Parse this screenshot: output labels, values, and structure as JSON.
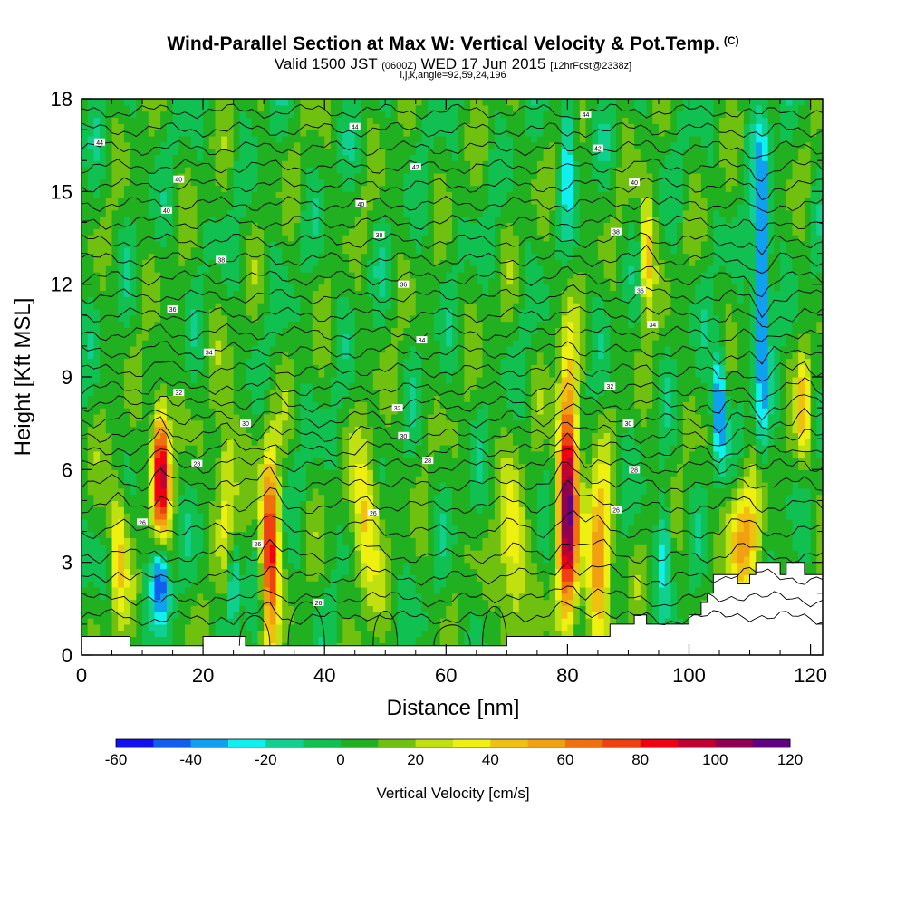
{
  "header": {
    "title": "Wind-Parallel Section at Max W: Vertical Velocity & Pot.Temp.",
    "copyright": "(C)",
    "valid_prefix": "Valid 1500 JST",
    "valid_utc": "(0600Z)",
    "valid_date": "WED 17 Jun 2015",
    "forecast": "[12hrFcst@2338z]",
    "indices": "i,j,k,angle=92,59,24,196"
  },
  "chart_data": {
    "type": "heatmap",
    "xlabel": "Distance [nm]",
    "ylabel": "Height [Kft MSL]",
    "xlim": [
      0,
      122
    ],
    "ylim": [
      0,
      18
    ],
    "xticks": [
      0,
      20,
      40,
      60,
      80,
      100,
      120
    ],
    "yticks": [
      0,
      3,
      6,
      9,
      12,
      15,
      18
    ],
    "colorbar": {
      "label": "Vertical Velocity [cm/s]",
      "ticks": [
        -60,
        -40,
        -20,
        0,
        20,
        40,
        60,
        80,
        100,
        120
      ],
      "range": [
        -60,
        120
      ],
      "step": 10,
      "colors": [
        "#1010f0",
        "#1060f0",
        "#10a0f0",
        "#10f0f0",
        "#10d090",
        "#10c050",
        "#20b020",
        "#70c010",
        "#c0e010",
        "#f0f010",
        "#f0c010",
        "#f0a010",
        "#f07010",
        "#f04010",
        "#f00010",
        "#c00030",
        "#900050",
        "#600080"
      ]
    },
    "plumes": [
      {
        "x": 13,
        "z": 6.0,
        "w": 95,
        "sx": 1.0,
        "sz": 1.6
      },
      {
        "x": 6,
        "z": 3.5,
        "w": 40,
        "sx": 1.0,
        "sz": 1.8
      },
      {
        "x": 31,
        "z": 3.5,
        "w": 85,
        "sx": 1.0,
        "sz": 2.2
      },
      {
        "x": 24,
        "z": 5.5,
        "w": 40,
        "sx": 1.2,
        "sz": 2.0
      },
      {
        "x": 47,
        "z": 4.2,
        "w": 45,
        "sx": 1.4,
        "sz": 1.8
      },
      {
        "x": 80,
        "z": 5.2,
        "w": 105,
        "sx": 1.2,
        "sz": 2.8
      },
      {
        "x": 85,
        "z": 3.2,
        "w": 60,
        "sx": 1.5,
        "sz": 1.8
      },
      {
        "x": 71,
        "z": 3.0,
        "w": 40,
        "sx": 1.4,
        "sz": 2.0
      },
      {
        "x": 93,
        "z": 13.0,
        "w": 50,
        "sx": 0.8,
        "sz": 1.3
      },
      {
        "x": 109,
        "z": 3.8,
        "w": 45,
        "sx": 2.0,
        "sz": 1.4
      },
      {
        "x": 119,
        "z": 8.0,
        "w": 45,
        "sx": 0.7,
        "sz": 1.4
      },
      {
        "x": 13,
        "z": 2.5,
        "w": -55,
        "sx": 1.0,
        "sz": 1.0
      },
      {
        "x": 25,
        "z": 2.5,
        "w": -40,
        "sx": 0.8,
        "sz": 1.2
      },
      {
        "x": 105,
        "z": 8.0,
        "w": -55,
        "sx": 0.8,
        "sz": 1.4
      },
      {
        "x": 112,
        "z": 12.0,
        "w": -55,
        "sx": 0.8,
        "sz": 1.6
      },
      {
        "x": 112,
        "z": 8.0,
        "w": -30,
        "sx": 0.8,
        "sz": 1.6
      },
      {
        "x": 96,
        "z": 3.5,
        "w": -30,
        "sx": 0.8,
        "sz": 1.2
      },
      {
        "x": 80,
        "z": 16.5,
        "w": -30,
        "sx": 0.8,
        "sz": 1.5
      },
      {
        "x": 112,
        "z": 15.5,
        "w": -30,
        "sx": 1.0,
        "sz": 2.0
      }
    ],
    "terrain": [
      [
        0,
        0.6
      ],
      [
        8,
        0.6
      ],
      [
        8,
        0.3
      ],
      [
        20,
        0.3
      ],
      [
        20,
        0.6
      ],
      [
        27,
        0.6
      ],
      [
        27,
        0.3
      ],
      [
        70,
        0.3
      ],
      [
        70,
        0.6
      ],
      [
        87,
        0.6
      ],
      [
        87,
        1.0
      ],
      [
        91,
        1.0
      ],
      [
        91,
        1.3
      ],
      [
        93,
        1.3
      ],
      [
        93,
        1.0
      ],
      [
        100,
        1.0
      ],
      [
        100,
        1.3
      ],
      [
        102,
        1.3
      ],
      [
        102,
        1.7
      ],
      [
        103,
        1.7
      ],
      [
        103,
        2.0
      ],
      [
        104,
        2.0
      ],
      [
        104,
        2.6
      ],
      [
        108,
        2.6
      ],
      [
        108,
        2.3
      ],
      [
        110,
        2.3
      ],
      [
        110,
        2.6
      ],
      [
        111,
        2.6
      ],
      [
        111,
        3.0
      ],
      [
        115,
        3.0
      ],
      [
        115,
        2.6
      ],
      [
        116,
        2.6
      ],
      [
        116,
        3.0
      ],
      [
        119,
        3.0
      ],
      [
        119,
        2.6
      ],
      [
        122,
        2.6
      ]
    ],
    "theta_contours": {
      "z_levels": [
        1.2,
        1.8,
        2.5,
        3.2,
        4.0,
        4.8,
        5.5,
        6.1,
        6.6,
        7.1,
        7.6,
        8.1,
        8.6,
        9.2,
        9.8,
        10.4,
        11.0,
        11.6,
        12.2,
        12.8,
        13.4,
        14.0,
        14.6,
        15.2,
        15.8,
        16.4,
        17.0,
        17.6
      ]
    },
    "contour_labels": [
      {
        "x": 3,
        "z": 16.6,
        "text": "44"
      },
      {
        "x": 16,
        "z": 15.4,
        "text": "40"
      },
      {
        "x": 14,
        "z": 14.4,
        "text": "40"
      },
      {
        "x": 23,
        "z": 12.8,
        "text": "38"
      },
      {
        "x": 15,
        "z": 11.2,
        "text": "36"
      },
      {
        "x": 21,
        "z": 9.8,
        "text": "34"
      },
      {
        "x": 16,
        "z": 8.5,
        "text": "32"
      },
      {
        "x": 27,
        "z": 7.5,
        "text": "30"
      },
      {
        "x": 19,
        "z": 6.2,
        "text": "28"
      },
      {
        "x": 10,
        "z": 4.3,
        "text": "26"
      },
      {
        "x": 29,
        "z": 3.6,
        "text": "26"
      },
      {
        "x": 39,
        "z": 1.7,
        "text": "26"
      },
      {
        "x": 45,
        "z": 17.1,
        "text": "44"
      },
      {
        "x": 55,
        "z": 15.8,
        "text": "42"
      },
      {
        "x": 46,
        "z": 14.6,
        "text": "40"
      },
      {
        "x": 49,
        "z": 13.6,
        "text": "38"
      },
      {
        "x": 53,
        "z": 12.0,
        "text": "36"
      },
      {
        "x": 56,
        "z": 10.2,
        "text": "34"
      },
      {
        "x": 52,
        "z": 8.0,
        "text": "32"
      },
      {
        "x": 53,
        "z": 7.1,
        "text": "30"
      },
      {
        "x": 57,
        "z": 6.3,
        "text": "28"
      },
      {
        "x": 48,
        "z": 4.6,
        "text": "26"
      },
      {
        "x": 83,
        "z": 17.5,
        "text": "44"
      },
      {
        "x": 85,
        "z": 16.4,
        "text": "42"
      },
      {
        "x": 91,
        "z": 15.3,
        "text": "40"
      },
      {
        "x": 88,
        "z": 13.7,
        "text": "38"
      },
      {
        "x": 92,
        "z": 11.8,
        "text": "36"
      },
      {
        "x": 94,
        "z": 10.7,
        "text": "34"
      },
      {
        "x": 87,
        "z": 8.7,
        "text": "32"
      },
      {
        "x": 90,
        "z": 7.5,
        "text": "30"
      },
      {
        "x": 91,
        "z": 6.0,
        "text": "28"
      },
      {
        "x": 88,
        "z": 4.7,
        "text": "26"
      }
    ]
  }
}
